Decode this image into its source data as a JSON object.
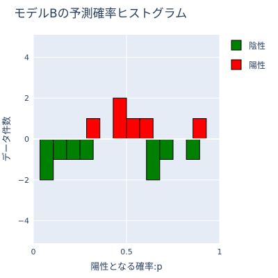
{
  "chart_data": {
    "type": "bar",
    "title": "モデルBの予測確率ヒストグラム",
    "xlabel": "陽性となる確率:p",
    "ylabel": "データ件数",
    "xlim": [
      0,
      1
    ],
    "ylim": [
      -5.1,
      5.1
    ],
    "x_ticks": [
      {
        "value": 0,
        "label": "0"
      },
      {
        "value": 0.5,
        "label": "0.5"
      },
      {
        "value": 1,
        "label": "1"
      }
    ],
    "y_ticks": [
      {
        "value": 4,
        "label": "4"
      },
      {
        "value": 2,
        "label": "2"
      },
      {
        "value": 0,
        "label": "0"
      },
      {
        "value": -2,
        "label": "−2"
      },
      {
        "value": -4,
        "label": "−4"
      }
    ],
    "bin_width": 0.0714,
    "series": [
      {
        "name": "陰性",
        "color": "#008000",
        "bins": [
          {
            "start": 0.0357,
            "value": -2
          },
          {
            "start": 0.1071,
            "value": -1
          },
          {
            "start": 0.1786,
            "value": -1
          },
          {
            "start": 0.25,
            "value": -1
          },
          {
            "start": 0.6071,
            "value": -2
          },
          {
            "start": 0.6786,
            "value": -1
          },
          {
            "start": 0.8214,
            "value": -1
          }
        ]
      },
      {
        "name": "陽性",
        "color": "#ff0000",
        "bins": [
          {
            "start": 0.2857,
            "value": 1
          },
          {
            "start": 0.4286,
            "value": 2
          },
          {
            "start": 0.5,
            "value": 1
          },
          {
            "start": 0.5714,
            "value": 1
          },
          {
            "start": 0.8571,
            "value": 1
          }
        ]
      }
    ]
  }
}
